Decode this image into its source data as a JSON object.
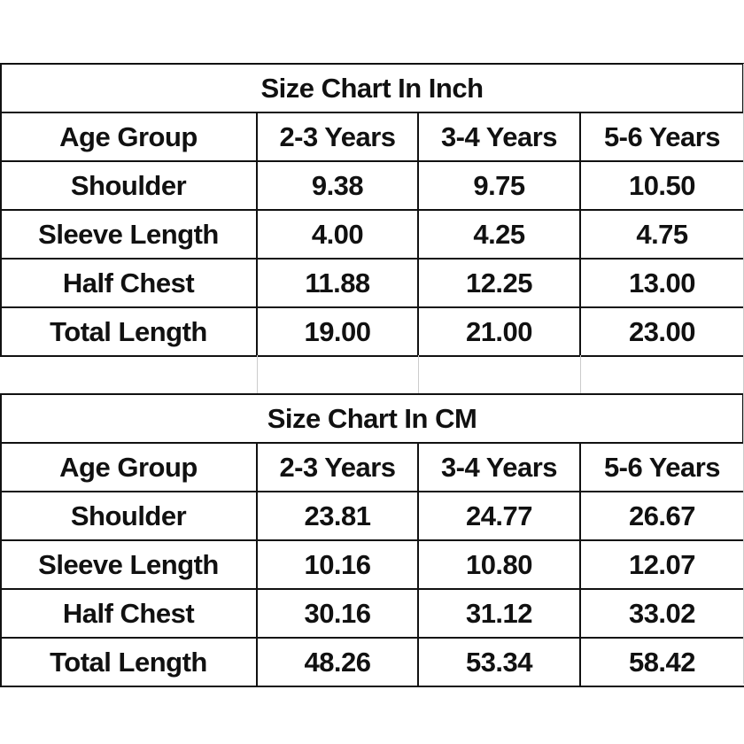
{
  "tables": [
    {
      "title": "Size Chart In Inch",
      "header": [
        "Age Group",
        "2-3 Years",
        "3-4 Years",
        "5-6 Years"
      ],
      "rows": [
        [
          "Shoulder",
          "9.38",
          "9.75",
          "10.50"
        ],
        [
          "Sleeve Length",
          "4.00",
          "4.25",
          "4.75"
        ],
        [
          "Half Chest",
          "11.88",
          "12.25",
          "13.00"
        ],
        [
          "Total Length",
          "19.00",
          "21.00",
          "23.00"
        ]
      ]
    },
    {
      "title": "Size Chart In CM",
      "header": [
        "Age Group",
        "2-3 Years",
        "3-4 Years",
        "5-6 Years"
      ],
      "rows": [
        [
          "Shoulder",
          "23.81",
          "24.77",
          "26.67"
        ],
        [
          "Sleeve Length",
          "10.16",
          "10.80",
          "12.07"
        ],
        [
          "Half Chest",
          "30.16",
          "31.12",
          "33.02"
        ],
        [
          "Total Length",
          "48.26",
          "53.34",
          "58.42"
        ]
      ]
    }
  ]
}
